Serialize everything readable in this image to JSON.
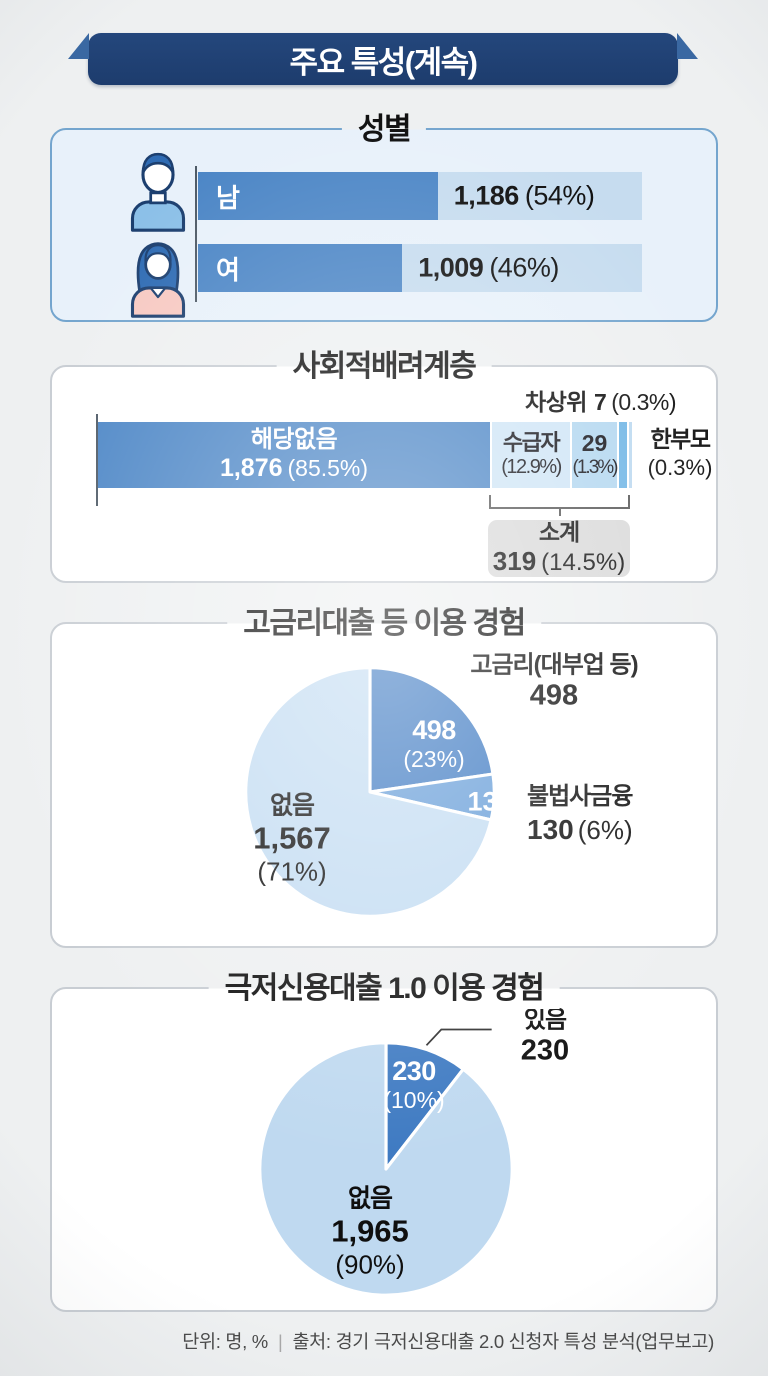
{
  "page": {
    "title": "주요 특성(계속)"
  },
  "colors": {
    "banner_navy": "#1d3c6d",
    "banner_wing": "#3a68a2",
    "bar_fill_blue": "#4c86c6",
    "bar_track_light": "#c6dcef",
    "gender_box_bg": "#e8f1fa",
    "gender_box_border": "#74a5ce",
    "seg_sugupja": "#cfe5f6",
    "seg_29": "#b3d7f0",
    "seg_chasangwi": "#6fb5e5",
    "seg_hanbumo": "#bcd9f0",
    "subtotal_gray": "#d9d9d9",
    "pie_dark": "#3e7ac2",
    "pie_mid": "#669dd8",
    "pie_light1": "#c3dcf2",
    "pie_light2": "#bfd9f0"
  },
  "sections": {
    "gender": {
      "title": "성별",
      "rows": [
        {
          "label": "남",
          "value": "1,186",
          "pct": "(54%)",
          "fill_pct": 54
        },
        {
          "label": "여",
          "value": "1,009",
          "pct": "(46%)",
          "fill_pct": 46
        }
      ]
    },
    "social": {
      "title": "사회적배려계층",
      "callout_top": {
        "label": "차상위",
        "value": "7",
        "pct": "(0.3%)"
      },
      "bar": {
        "main_label": "해당없음",
        "main_value": "1,876",
        "main_pct": "(85.5%)",
        "seg2_label": "수급자",
        "seg2_pct": "(12.9%)",
        "seg3_value": "29",
        "seg3_pct": "(1.3%)"
      },
      "callout_right": {
        "label": "한부모",
        "pct": "(0.3%)"
      },
      "subtotal": {
        "label": "소계",
        "value": "319",
        "pct": "(14.5%)"
      }
    },
    "loan_pie": {
      "title": "고금리대출 등 이용 경험",
      "slice1_value": "498",
      "slice1_pct": "(23%)",
      "slice2_value": "130",
      "none_label": "없음",
      "none_value": "1,567",
      "none_pct": "(71%)",
      "callout1_label": "고금리(대부업 등)",
      "callout1_value": "498",
      "callout2_label": "불법사금융",
      "callout2_value": "130",
      "callout2_pct": "(6%)"
    },
    "v1_pie": {
      "title": "극저신용대출 1.0 이용 경험",
      "slice_value": "230",
      "slice_pct": "(10%)",
      "callout_label": "있음",
      "callout_value": "230",
      "none_label": "없음",
      "none_value": "1,965",
      "none_pct": "(90%)"
    }
  },
  "footer": {
    "unit": "단위: 명, %",
    "sep": "|",
    "source": "출처: 경기 극저신용대출 2.0 신청자 특성 분석(업무보고)"
  },
  "chart_data": [
    {
      "id": "gender",
      "type": "bar",
      "title": "성별",
      "orientation": "horizontal",
      "categories": [
        "남",
        "여"
      ],
      "values": [
        1186,
        1009
      ],
      "pct": [
        54,
        46
      ],
      "bar_color": "#4c86c6",
      "track_color": "#c6dcef"
    },
    {
      "id": "social-consideration",
      "type": "bar",
      "title": "사회적배려계층",
      "stacked": true,
      "segments": [
        {
          "label": "해당없음",
          "value": 1876,
          "pct": 85.5,
          "color": "#4c86c6"
        },
        {
          "label": "수급자",
          "pct": 12.9,
          "color": "#cfe5f6"
        },
        {
          "label": "",
          "value": 29,
          "pct": 1.3,
          "color": "#b3d7f0"
        },
        {
          "label": "차상위",
          "value": 7,
          "pct": 0.3,
          "color": "#6fb5e5"
        },
        {
          "label": "한부모",
          "pct": 0.3,
          "color": "#bcd9f0"
        }
      ],
      "subtotal": {
        "label": "소계",
        "value": 319,
        "pct": 14.5
      }
    },
    {
      "id": "high-interest-loan-experience",
      "type": "pie",
      "title": "고금리대출 등 이용 경험",
      "start_angle": "top",
      "direction": "clockwise",
      "slices": [
        {
          "label": "고금리(대부업 등)",
          "value": 498,
          "pct": 23,
          "color": "#3e7ac2"
        },
        {
          "label": "불법사금융",
          "value": 130,
          "pct": 6,
          "color": "#669dd8"
        },
        {
          "label": "없음",
          "value": 1567,
          "pct": 71,
          "color": "#c3dcf2"
        }
      ]
    },
    {
      "id": "v1-loan-experience",
      "type": "pie",
      "title": "극저신용대출 1.0 이용 경험",
      "start_angle": "top",
      "direction": "clockwise",
      "slices": [
        {
          "label": "있음",
          "value": 230,
          "pct": 10,
          "color": "#3e7ac2"
        },
        {
          "label": "없음",
          "value": 1965,
          "pct": 90,
          "color": "#bfd9f0"
        }
      ]
    }
  ]
}
